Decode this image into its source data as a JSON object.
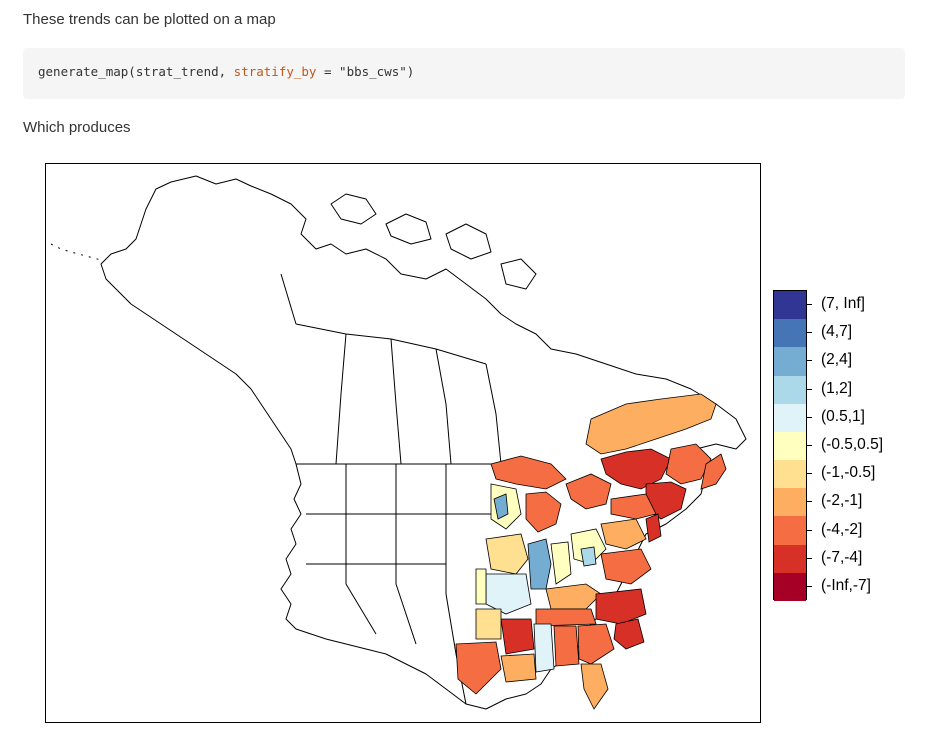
{
  "intro_text": "These trends can be plotted on a map",
  "code": {
    "fn": "generate_map(strat_trend, ",
    "arg_name": "stratify_by",
    "eq": " = ",
    "arg_value": "\"bbs_cws\"",
    "close": ")"
  },
  "produces_text": "Which produces",
  "map": {
    "legend": [
      {
        "label": "(7, Inf]",
        "color": "#313695"
      },
      {
        "label": "(4,7]",
        "color": "#4575b4"
      },
      {
        "label": "(2,4]",
        "color": "#74add1"
      },
      {
        "label": "(1,2]",
        "color": "#abd9e9"
      },
      {
        "label": "(0.5,1]",
        "color": "#e0f3f8"
      },
      {
        "label": "(-0.5,0.5]",
        "color": "#ffffbf"
      },
      {
        "label": "(-1,-0.5]",
        "color": "#fee090"
      },
      {
        "label": "(-2,-1]",
        "color": "#fdae61"
      },
      {
        "label": "(-4,-2]",
        "color": "#f46d43"
      },
      {
        "label": "(-7,-4]",
        "color": "#d73027"
      },
      {
        "label": "(-Inf,-7]",
        "color": "#a50026"
      }
    ]
  }
}
